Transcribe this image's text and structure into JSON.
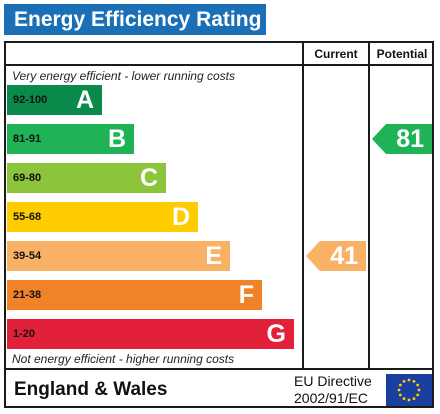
{
  "title": "Energy Efficiency Rating",
  "columns": {
    "current": "Current",
    "potential": "Potential"
  },
  "top_note": "Very energy efficient - lower running costs",
  "bottom_note": "Not energy efficient - higher running costs",
  "footer": {
    "region": "England & Wales",
    "directive_line1": "EU Directive",
    "directive_line2": "2002/91/EC"
  },
  "colors": {
    "title_bar": "#1a6fb7",
    "eu_flag": "#1a3f9e",
    "eu_stars": "#ffd200"
  },
  "chart_data": {
    "type": "bar",
    "title": "Energy Efficiency Rating",
    "bands": [
      {
        "letter": "A",
        "range": "92-100",
        "min": 92,
        "max": 100,
        "color": "#0a8a4a"
      },
      {
        "letter": "B",
        "range": "81-91",
        "min": 81,
        "max": 91,
        "color": "#1fb356"
      },
      {
        "letter": "C",
        "range": "69-80",
        "min": 69,
        "max": 80,
        "color": "#8cc43c"
      },
      {
        "letter": "D",
        "range": "55-68",
        "min": 55,
        "max": 68,
        "color": "#ffcc00"
      },
      {
        "letter": "E",
        "range": "39-54",
        "min": 39,
        "max": 54,
        "color": "#f9b165"
      },
      {
        "letter": "F",
        "range": "21-38",
        "min": 21,
        "max": 38,
        "color": "#f08227"
      },
      {
        "letter": "G",
        "range": "1-20",
        "min": 1,
        "max": 20,
        "color": "#e3203a"
      }
    ],
    "current": {
      "value": 41,
      "band": "E",
      "color": "#f9b165"
    },
    "potential": {
      "value": 81,
      "band": "B",
      "color": "#1fb356"
    }
  }
}
